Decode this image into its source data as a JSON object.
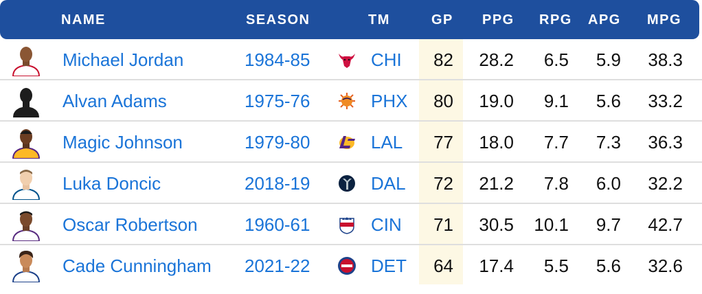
{
  "headers": {
    "name": "NAME",
    "season": "SEASON",
    "tm": "TM",
    "gp": "GP",
    "ppg": "PPG",
    "rpg": "RPG",
    "apg": "APG",
    "mpg": "MPG"
  },
  "colors": {
    "header_bg": "#1e4f9e",
    "link": "#1a74d8",
    "gp_highlight": "#fdf8e4"
  },
  "rows": [
    {
      "name": "Michael Jordan",
      "season": "1984-85",
      "team": "CHI",
      "team_logo": "bulls-logo-icon",
      "gp": "82",
      "ppg": "28.2",
      "rpg": "6.5",
      "apg": "5.9",
      "mpg": "38.3"
    },
    {
      "name": "Alvan Adams",
      "season": "1975-76",
      "team": "PHX",
      "team_logo": "suns-logo-icon",
      "gp": "80",
      "ppg": "19.0",
      "rpg": "9.1",
      "apg": "5.6",
      "mpg": "33.2"
    },
    {
      "name": "Magic Johnson",
      "season": "1979-80",
      "team": "LAL",
      "team_logo": "lakers-logo-icon",
      "gp": "77",
      "ppg": "18.0",
      "rpg": "7.7",
      "apg": "7.3",
      "mpg": "36.3"
    },
    {
      "name": "Luka Doncic",
      "season": "2018-19",
      "team": "DAL",
      "team_logo": "mavericks-logo-icon",
      "gp": "72",
      "ppg": "21.2",
      "rpg": "7.8",
      "apg": "6.0",
      "mpg": "32.2"
    },
    {
      "name": "Oscar Robertson",
      "season": "1960-61",
      "team": "CIN",
      "team_logo": "royals-logo-icon",
      "gp": "71",
      "ppg": "30.5",
      "rpg": "10.1",
      "apg": "9.7",
      "mpg": "42.7"
    },
    {
      "name": "Cade Cunningham",
      "season": "2021-22",
      "team": "DET",
      "team_logo": "pistons-logo-icon",
      "gp": "64",
      "ppg": "17.4",
      "rpg": "5.5",
      "apg": "5.6",
      "mpg": "32.6"
    }
  ]
}
